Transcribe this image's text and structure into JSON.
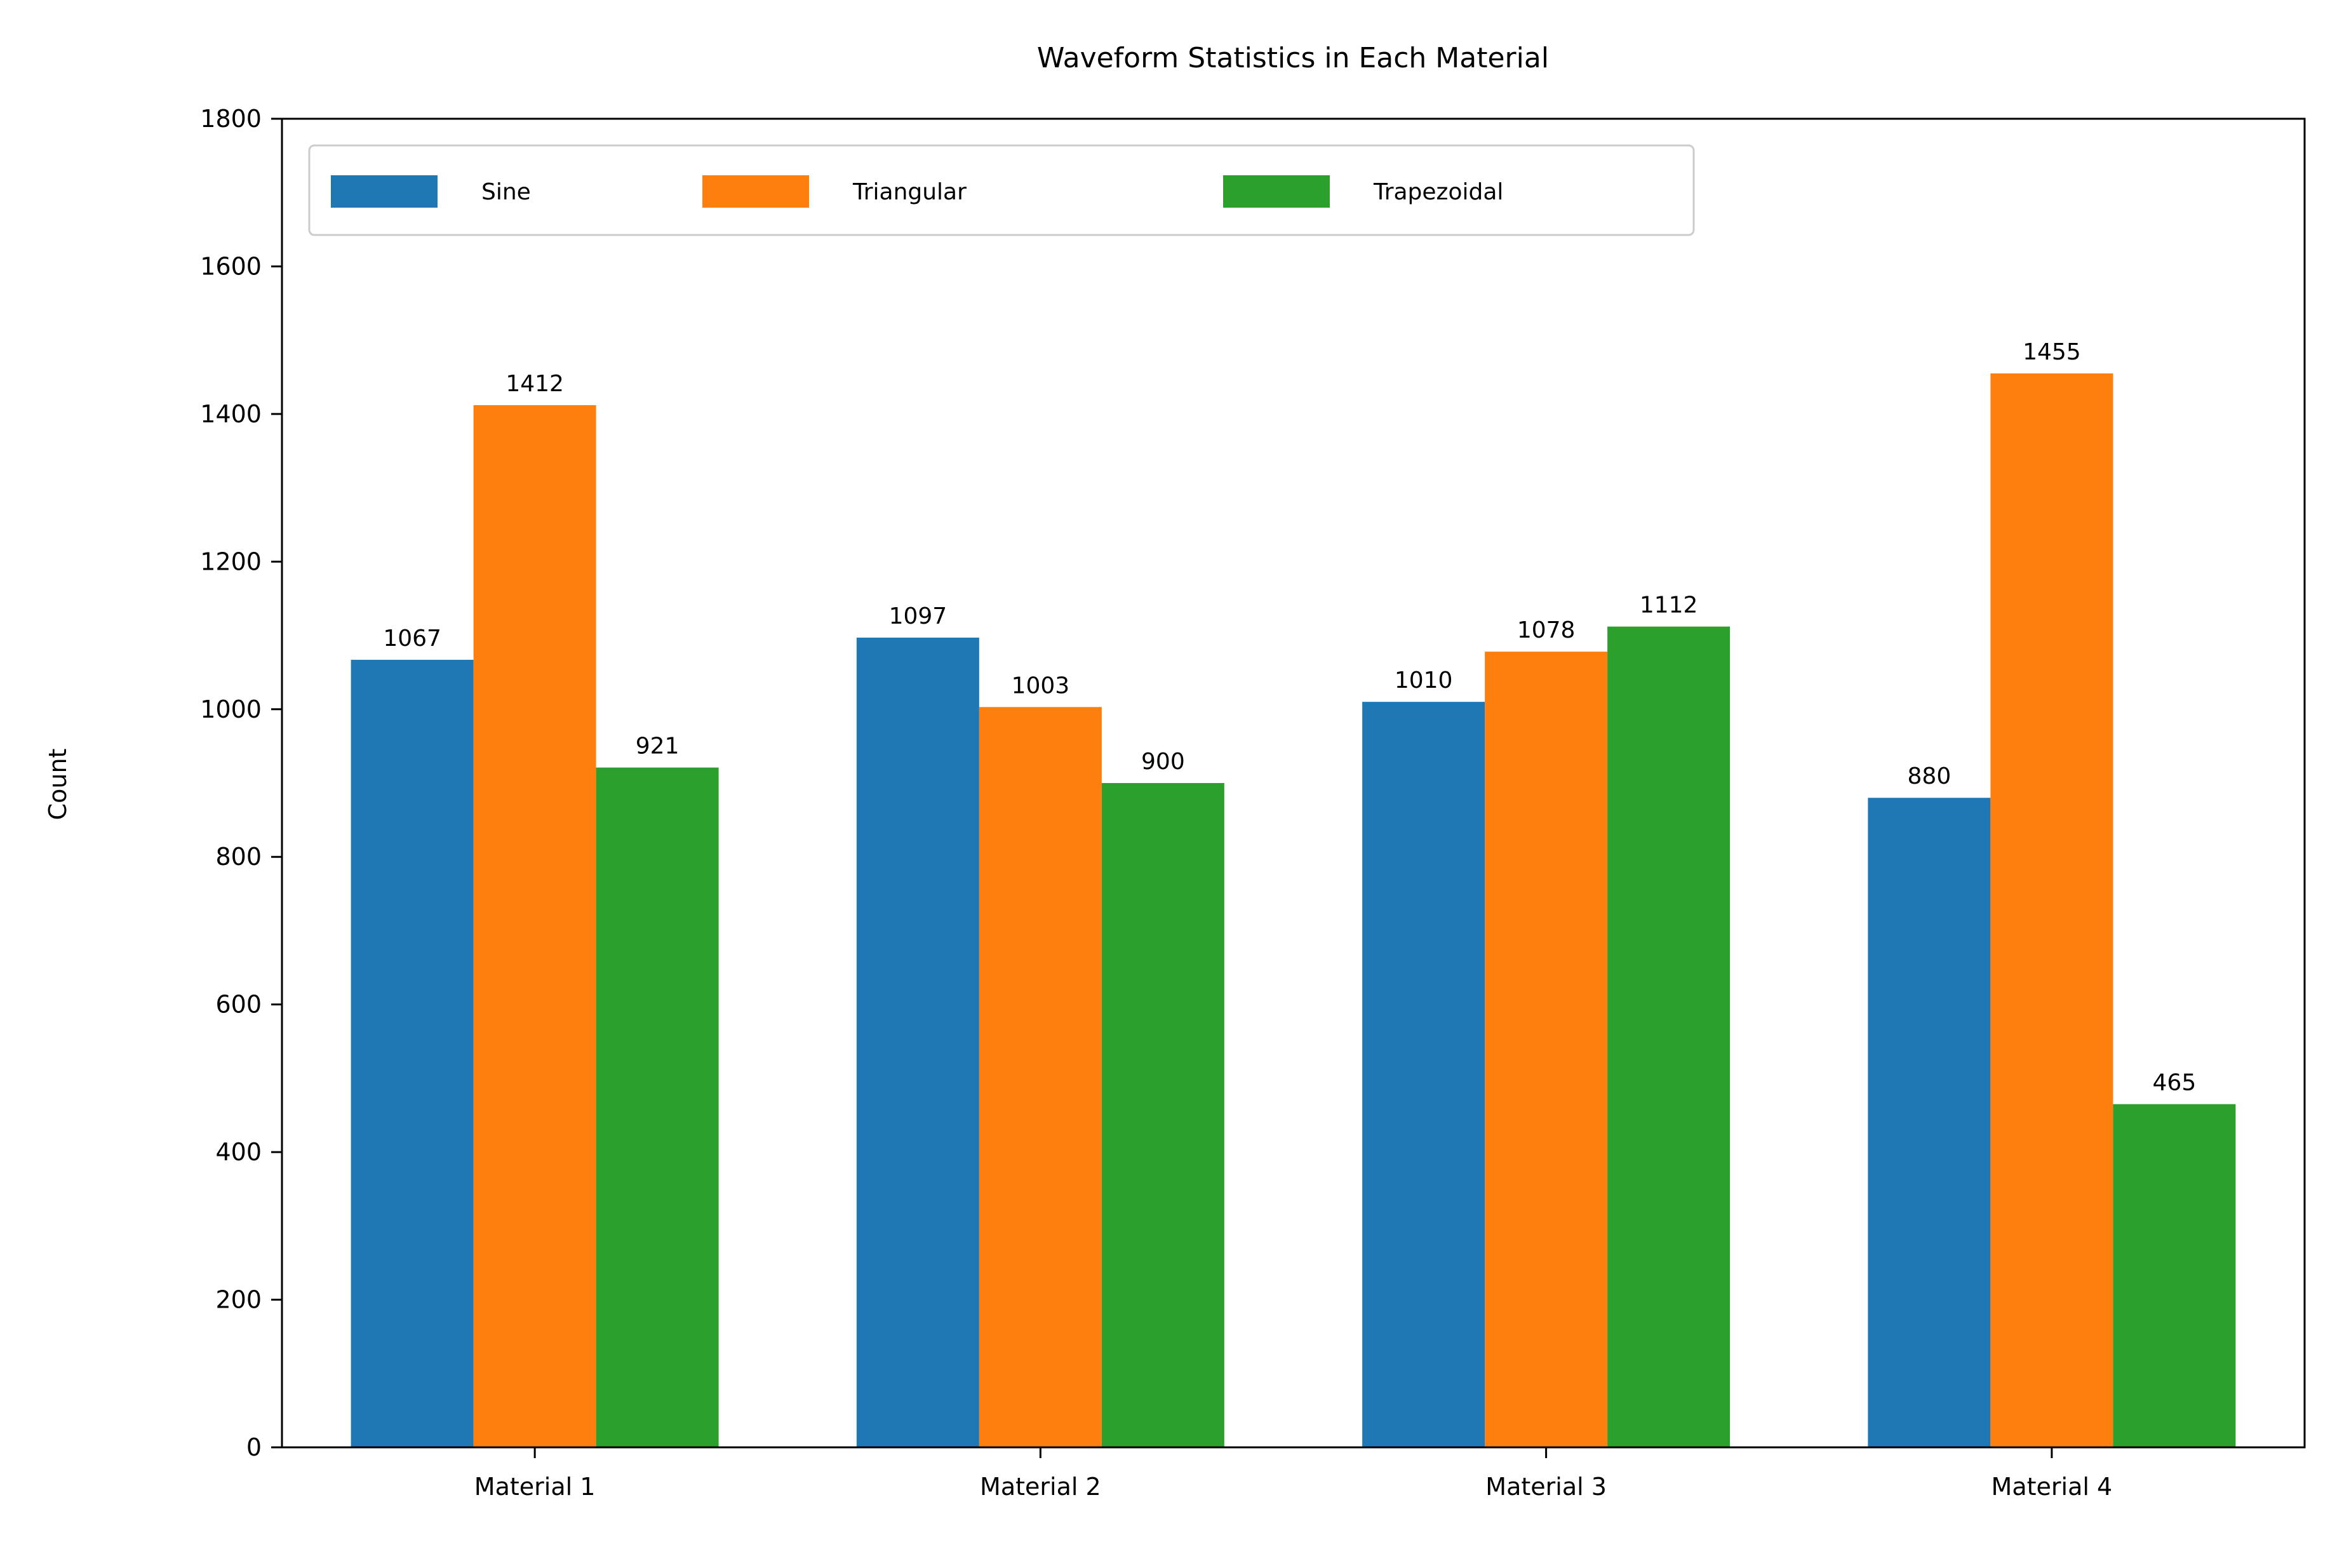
{
  "chart_data": {
    "type": "bar",
    "title": "Waveform Statistics in Each Material",
    "xlabel": "",
    "ylabel": "Count",
    "categories": [
      "Material 1",
      "Material 2",
      "Material 3",
      "Material 4"
    ],
    "ylim": [
      0,
      1800
    ],
    "yticks": [
      0,
      200,
      400,
      600,
      800,
      1000,
      1200,
      1400,
      1600,
      1800
    ],
    "grid": false,
    "legend_position": "top-left",
    "series": [
      {
        "name": "Sine",
        "color": "#1f77b4",
        "values": [
          1067,
          1097,
          1010,
          880
        ]
      },
      {
        "name": "Triangular",
        "color": "#ff7f0e",
        "values": [
          1412,
          1003,
          1078,
          1455
        ]
      },
      {
        "name": "Trapezoidal",
        "color": "#2ca02c",
        "values": [
          921,
          900,
          1112,
          465
        ]
      }
    ]
  }
}
